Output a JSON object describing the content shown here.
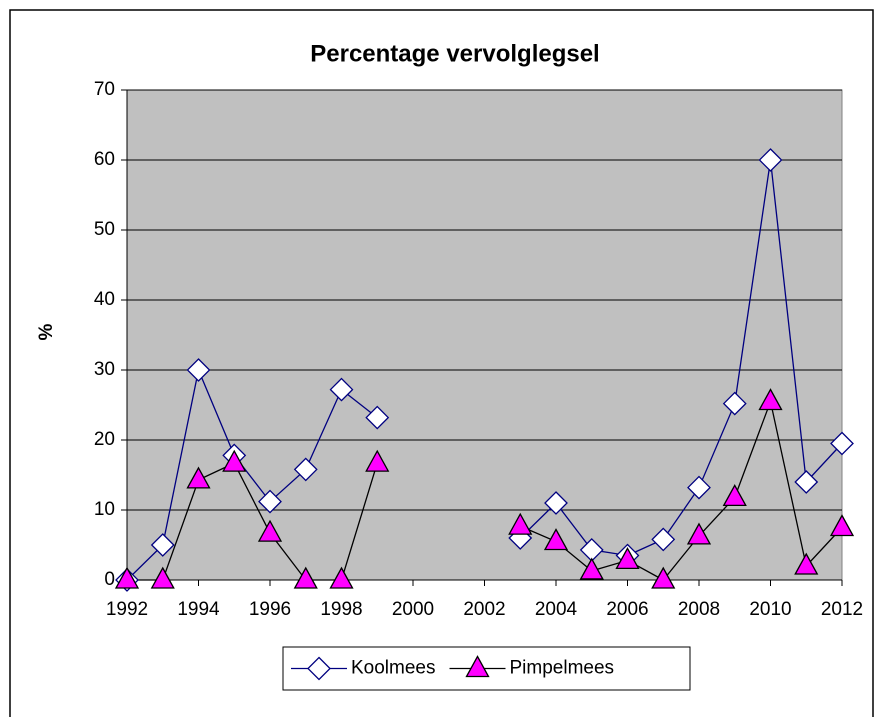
{
  "chart_data": {
    "type": "line",
    "title": "Percentage vervolglegsel",
    "y_label": "%",
    "x": [
      1992,
      1993,
      1994,
      1995,
      1996,
      1997,
      1998,
      1999,
      2000,
      2001,
      2002,
      2003,
      2004,
      2005,
      2006,
      2007,
      2008,
      2009,
      2010,
      2011,
      2012
    ],
    "series": [
      {
        "name": "Koolmees",
        "color": "#000080",
        "marker": "diamond",
        "marker_fill": "#ffffff",
        "values": [
          0,
          5,
          30,
          17.8,
          11.2,
          15.8,
          27.2,
          23.2,
          null,
          null,
          null,
          6,
          11,
          4.3,
          3.5,
          5.8,
          13.2,
          25.2,
          60,
          14,
          19.5
        ]
      },
      {
        "name": "Pimpelmees",
        "color": "#000000",
        "marker": "triangle",
        "marker_fill": "#ff00ff",
        "values": [
          0,
          0,
          14.3,
          16.7,
          6.7,
          0,
          0,
          16.7,
          null,
          null,
          null,
          7.7,
          5.5,
          1.3,
          2.8,
          0,
          6.3,
          11.8,
          25.5,
          2,
          7.5
        ]
      }
    ],
    "xlim": [
      1992,
      2012
    ],
    "xticks": [
      1992,
      1994,
      1996,
      1998,
      2000,
      2002,
      2004,
      2006,
      2008,
      2010,
      2012
    ],
    "ylim": [
      0,
      70
    ],
    "yticks": [
      0,
      10,
      20,
      30,
      40,
      50,
      60,
      70
    ],
    "grid": true,
    "plot_background": "#c0c0c0",
    "legend": "bottom"
  }
}
